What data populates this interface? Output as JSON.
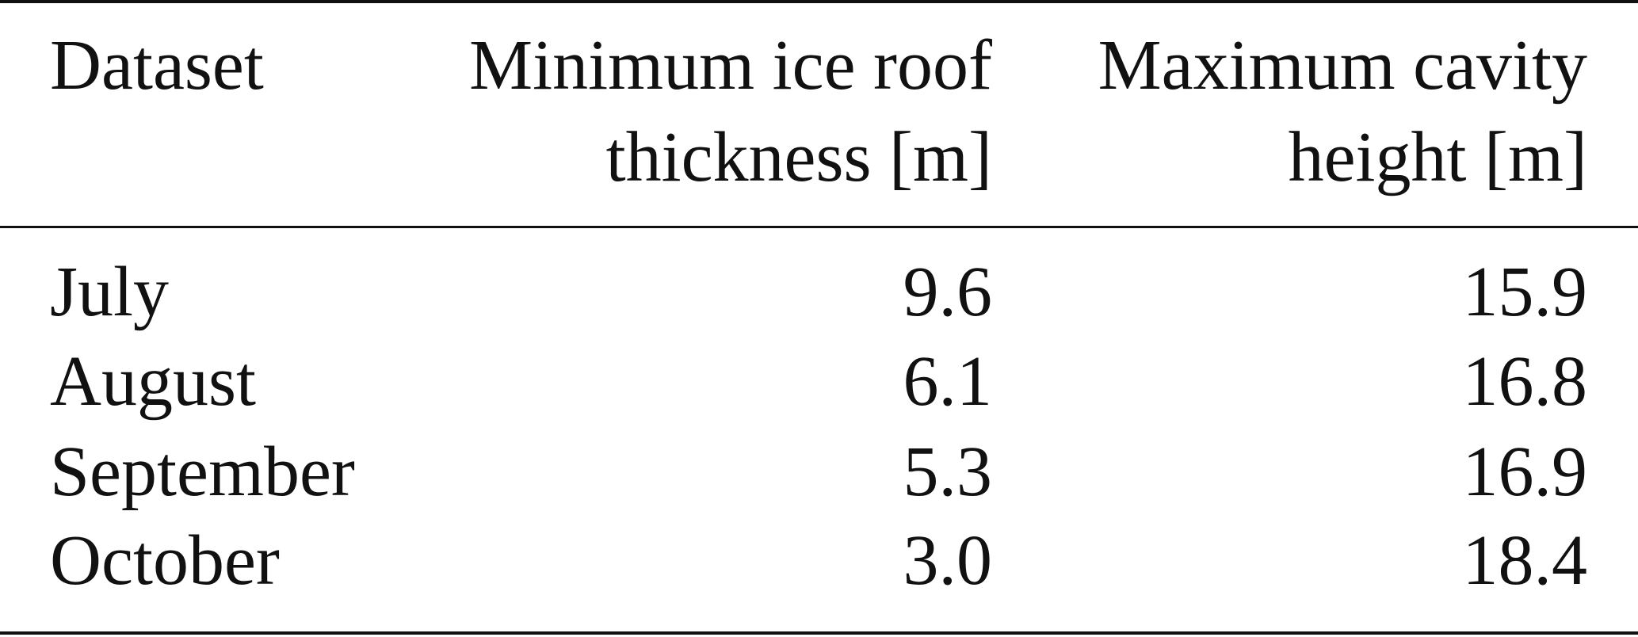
{
  "table": {
    "header": [
      [
        "Dataset"
      ],
      [
        "Minimum ice roof",
        "thickness [m]"
      ],
      [
        "Maximum cavity",
        "height [m]"
      ]
    ],
    "rows": [
      [
        "July",
        "9.6",
        "15.9"
      ],
      [
        "August",
        "6.1",
        "16.8"
      ],
      [
        "September",
        "5.3",
        "16.9"
      ],
      [
        "October",
        "3.0",
        "18.4"
      ]
    ]
  }
}
